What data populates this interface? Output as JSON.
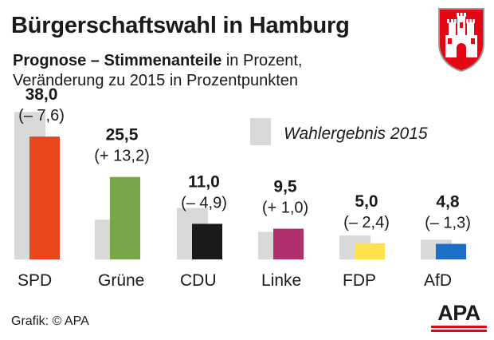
{
  "title": "Bürgerschaftswahl in Hamburg",
  "subtitle": {
    "bold": "Prognose – Stimmenanteile",
    "rest1": " in Prozent,",
    "line2": "Veränderung zu 2015 in Prozentpunkten"
  },
  "credit": "Grafik: © APA",
  "logo_text": "APA",
  "chart_data": {
    "type": "bar",
    "categories": [
      "SPD",
      "Grüne",
      "CDU",
      "Linke",
      "FDP",
      "AfD"
    ],
    "series": [
      {
        "name": "Wahlergebnis 2015",
        "values": [
          45.6,
          12.3,
          15.9,
          8.5,
          7.4,
          6.1
        ],
        "color": "#d9d9d9"
      },
      {
        "name": "",
        "values": [
          38.0,
          25.5,
          11.0,
          9.5,
          5.0,
          4.8
        ]
      }
    ],
    "value_labels": [
      "38,0",
      "25,5",
      "11,0",
      "9,5",
      "5,0",
      "4,8"
    ],
    "change_labels": [
      "(– 7,6)",
      "(+ 13,2)",
      "(– 4,9)",
      "(+ 1,0)",
      "(– 2,4)",
      "(– 1,3)"
    ],
    "party_colors": [
      "#e8471e",
      "#7aa64a",
      "#1a1a1a",
      "#b0306e",
      "#ffe14d",
      "#1c6ec6"
    ],
    "legend_label": "Wahlergebnis 2015",
    "legend_position": "top-right",
    "grid": false
  }
}
